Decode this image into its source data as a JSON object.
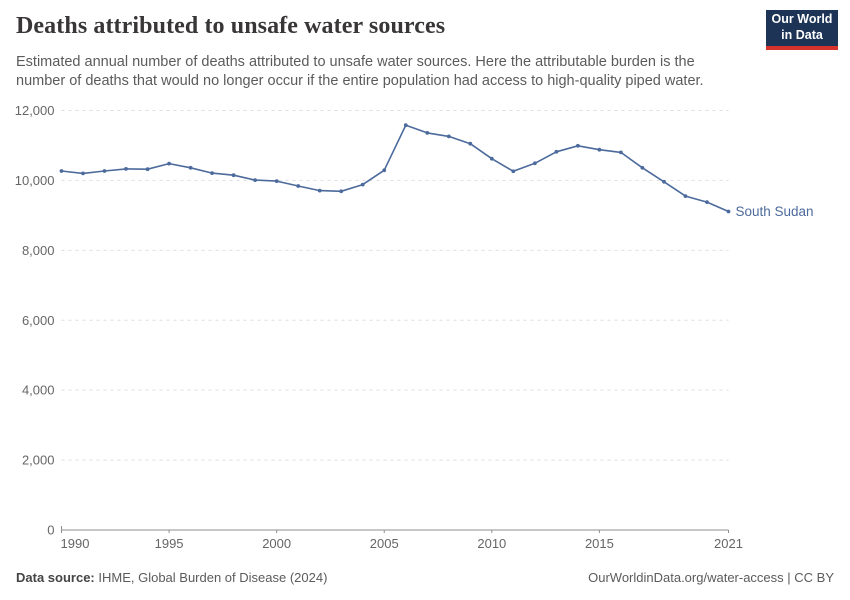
{
  "header": {
    "title": "Deaths attributed to unsafe water sources",
    "subtitle": "Estimated annual number of deaths attributed to unsafe water sources. Here the attributable burden is the number of deaths that would no longer occur if the entire population had access to high-quality piped water."
  },
  "logo": {
    "line1": "Our World",
    "line2": "in Data",
    "bg_color": "#1d3456",
    "accent_color": "#d7332c"
  },
  "chart_data": {
    "type": "line",
    "title": "Deaths attributed to unsafe water sources",
    "xlabel": "",
    "ylabel": "",
    "x": [
      1990,
      1991,
      1992,
      1993,
      1994,
      1995,
      1996,
      1997,
      1998,
      1999,
      2000,
      2001,
      2002,
      2003,
      2004,
      2005,
      2006,
      2007,
      2008,
      2009,
      2010,
      2011,
      2012,
      2013,
      2014,
      2015,
      2016,
      2017,
      2018,
      2019,
      2020,
      2021
    ],
    "series": [
      {
        "name": "South Sudan",
        "color": "#4c6a9c",
        "values": [
          10270,
          10200,
          10270,
          10330,
          10320,
          10480,
          10360,
          10210,
          10150,
          10010,
          9980,
          9840,
          9710,
          9690,
          9880,
          10290,
          11580,
          11360,
          11260,
          11050,
          10620,
          10260,
          10490,
          10820,
          10990,
          10880,
          10800,
          10360,
          9960,
          9550,
          9380,
          9110
        ]
      }
    ],
    "ylim": [
      0,
      12000
    ],
    "yticks": [
      0,
      2000,
      4000,
      6000,
      8000,
      10000,
      12000
    ],
    "xticks": [
      1990,
      1995,
      2000,
      2005,
      2010,
      2015,
      2021
    ],
    "grid": "dashed-horizontal",
    "legend_position": "end-of-line",
    "axis_color": "#8f8f8f",
    "grid_color": "#dddddd",
    "tick_label_color": "#666666",
    "marker": "dot"
  },
  "footer": {
    "source_label": "Data source:",
    "source_text": " IHME, Global Burden of Disease (2024)",
    "credit": "OurWorldinData.org/water-access | CC BY"
  }
}
